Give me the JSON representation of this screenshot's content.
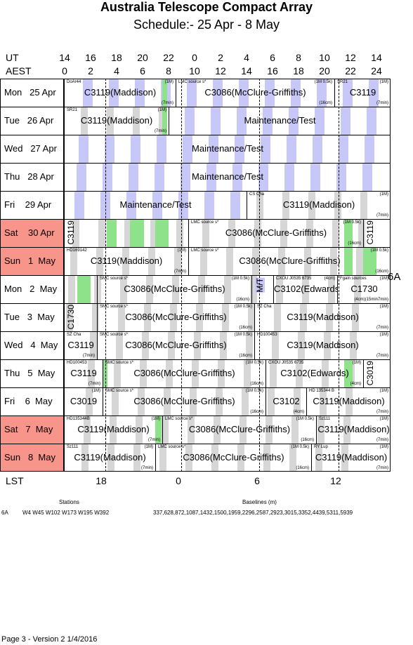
{
  "title": "Australia Telescope Compact Array",
  "subtitle": "Schedule:- 25 Apr - 8  May",
  "axis": {
    "ut_label": "UT",
    "aest_label": "AEST",
    "ut_ticks": [
      "14",
      "16",
      "18",
      "20",
      "22",
      "0",
      "2",
      "4",
      "6",
      "8",
      "10",
      "12",
      "14"
    ],
    "aest_ticks": [
      "0",
      "2",
      "4",
      "6",
      "8",
      "10",
      "12",
      "14",
      "16",
      "18",
      "20",
      "22",
      "24"
    ],
    "lst_label": "LST",
    "lst_ticks": [
      "18",
      "0",
      "6",
      "12"
    ]
  },
  "array_config": "6A",
  "rows": [
    {
      "day": "Mon   25 Apr",
      "weekend": false
    },
    {
      "day": "Tue   26 Apr",
      "weekend": false
    },
    {
      "day": "Wed   27 Apr",
      "weekend": false
    },
    {
      "day": "Thu   28 Apr",
      "weekend": false
    },
    {
      "day": "Fri    29 Apr",
      "weekend": false
    },
    {
      "day": "Sat    30 Apr",
      "weekend": true
    },
    {
      "day": "Sun   1  May",
      "weekend": true
    },
    {
      "day": "Mon   2  May",
      "weekend": false
    },
    {
      "day": "Tue   3  May",
      "weekend": false
    },
    {
      "day": "Wed   4  May",
      "weekend": false
    },
    {
      "day": "Thu   5  May",
      "weekend": false
    },
    {
      "day": "Fri    6  May",
      "weekend": false
    },
    {
      "day": "Sat   7  May",
      "weekend": true
    },
    {
      "day": "Sun   8  May",
      "weekend": true
    }
  ],
  "labels": {
    "r0": {
      "a": "C3119(Maddison)",
      "a_src": "DoAr44",
      "a_band": "(1M)",
      "a_time": "(7min)",
      "b": "C3086(McClure-Griffiths)",
      "b_src": "LMC source  s*",
      "b_band": "(1M 0.5k)",
      "b_time": "(16cm)",
      "c": "C3119",
      "c_src": "SR21",
      "c_band": "(1M)",
      "c_time": "(7min)"
    },
    "r1": {
      "a": "C3119(Maddison)",
      "a_src": "SR21",
      "a_band": "(1M)",
      "a_time": "(7min)",
      "b": "Maintenance/Test"
    },
    "r2": {
      "a": "Maintenance/Test"
    },
    "r3": {
      "a": "Maintenance/Test"
    },
    "r4": {
      "a": "Maintenance/Test",
      "b": "C3119(Maddison)",
      "b_src": "CS Cha",
      "b_band": "(1M)",
      "b_time": "(7min)"
    },
    "r5": {
      "a": "C3119",
      "b": "C3086(McClure-Griffiths)",
      "b_src": "LMC source  s*",
      "b_band": "(1M 0.5k)",
      "b_time": "(16cm)",
      "c": "C3119"
    },
    "r6": {
      "a": "C3119(Maddison)",
      "a_src": "HD169142",
      "a_band": "(1M)",
      "a_time": "(7min)",
      "b": "C3086(McClure-Griffiths)",
      "b_src": "LMC source  s*",
      "b_band": "(1M 0.5k)",
      "b_time": "(16cm)"
    },
    "r7": {
      "a": "C3086(McClure-Griffiths)",
      "a_src": "SMC source  s*",
      "a_band": "(1M 0.5k)",
      "a_time": "(16cm)",
      "b": "M/T",
      "c": "C3102(Edwards)",
      "c_src": "CXOU J0535 6735",
      "c_band": "(4cm)",
      "d": "C1730",
      "d_src": "Fgain sources",
      "d_band": "(1M)",
      "d_time": "(4cm)(15min7min)"
    },
    "r8": {
      "a": "C1730",
      "b": "C3086(McClure-Griffiths)",
      "b_src": "SMC source  s*",
      "b_band": "(1M 0.5k)",
      "b_time": "(16cm)",
      "c": "C3119(Maddison)",
      "c_src": "SZ Cha",
      "c_band": "(1M)",
      "c_time": "(7min)"
    },
    "r9": {
      "a": "C3119",
      "a_src": "SZ Cha",
      "a_time": "(7min)",
      "b": "C3086(McClure-Griffiths)",
      "b_src": "SMC source  s*",
      "b_band": "(1M 0.5k)",
      "b_time": "(16cm)",
      "c": "C3119(Maddison)",
      "c_src": "HD100453",
      "c_band": "(1M)",
      "c_time": "(7min)"
    },
    "r10": {
      "a": "C3119",
      "a_src": "HD100453",
      "a_time": "(7min)",
      "b": "C3086(McClure-Griffiths)",
      "b_src": "SMC source  s*",
      "b_band": "(1M 0.5k)",
      "b_time": "(16cm)",
      "c": "C3102(Edwards)",
      "c_src": "CXOU J0535 6735",
      "c_band": "(1M)",
      "c_time": "(4cm)",
      "d": "C3019"
    },
    "r11": {
      "a": "C3019",
      "a_band": "(1M)",
      "b": "C3086(McClure-Griffiths)",
      "b_src": "SMC source  s*",
      "b_band": "(1M 0.5k)",
      "b_time": "(16cm)",
      "c": "C3102",
      "c_time": "(4cm)",
      "d": "C3119(Maddison)",
      "d_src": "HD 135344 B",
      "d_band": "(1M)",
      "d_time": "(7min)"
    },
    "r12": {
      "a": "C3119(Maddison)",
      "a_src": "HD135344B",
      "a_band": "(1M)",
      "a_time": "(7min)",
      "b": "C3086(McClure-Griffiths)",
      "b_src": "LMC source  s*",
      "b_band": "(1M 0.5k)",
      "b_time": "(16cm)",
      "c": "C3119(Maddison)",
      "c_src": "Sz111",
      "c_band": "(1M)",
      "c_time": "(7min)"
    },
    "r13": {
      "a": "C3119(Maddison)",
      "a_src": "Sz111",
      "a_band": "(1M)",
      "a_time": "(7min)",
      "b": "C3086(McClure-Griffiths)",
      "b_src": "LMC source  s*",
      "b_band": "(1M 0.5k)",
      "b_time": "(16cm)",
      "c": "C3119(Maddison)",
      "c_src": "RY Lup",
      "c_band": "(1M)",
      "c_time": "(7min)"
    }
  },
  "footer": {
    "stations_label": "Stations",
    "baselines_label": "Baselines (m)",
    "config": "6A",
    "stations": "W4 W45 W102 W173 W195 W392",
    "baselines": "337,628,872,1087,1432,1500,1959,2296,2587,2923,3015,3352,4439,5311,5939",
    "page": "Page 3 - Version 2  1/4/2016"
  },
  "colors": {
    "weekend": "#f7958a",
    "grey_band": "#d6d6d6",
    "maintenance": "#c8c8f8",
    "reconfig": "#8ee38a"
  }
}
